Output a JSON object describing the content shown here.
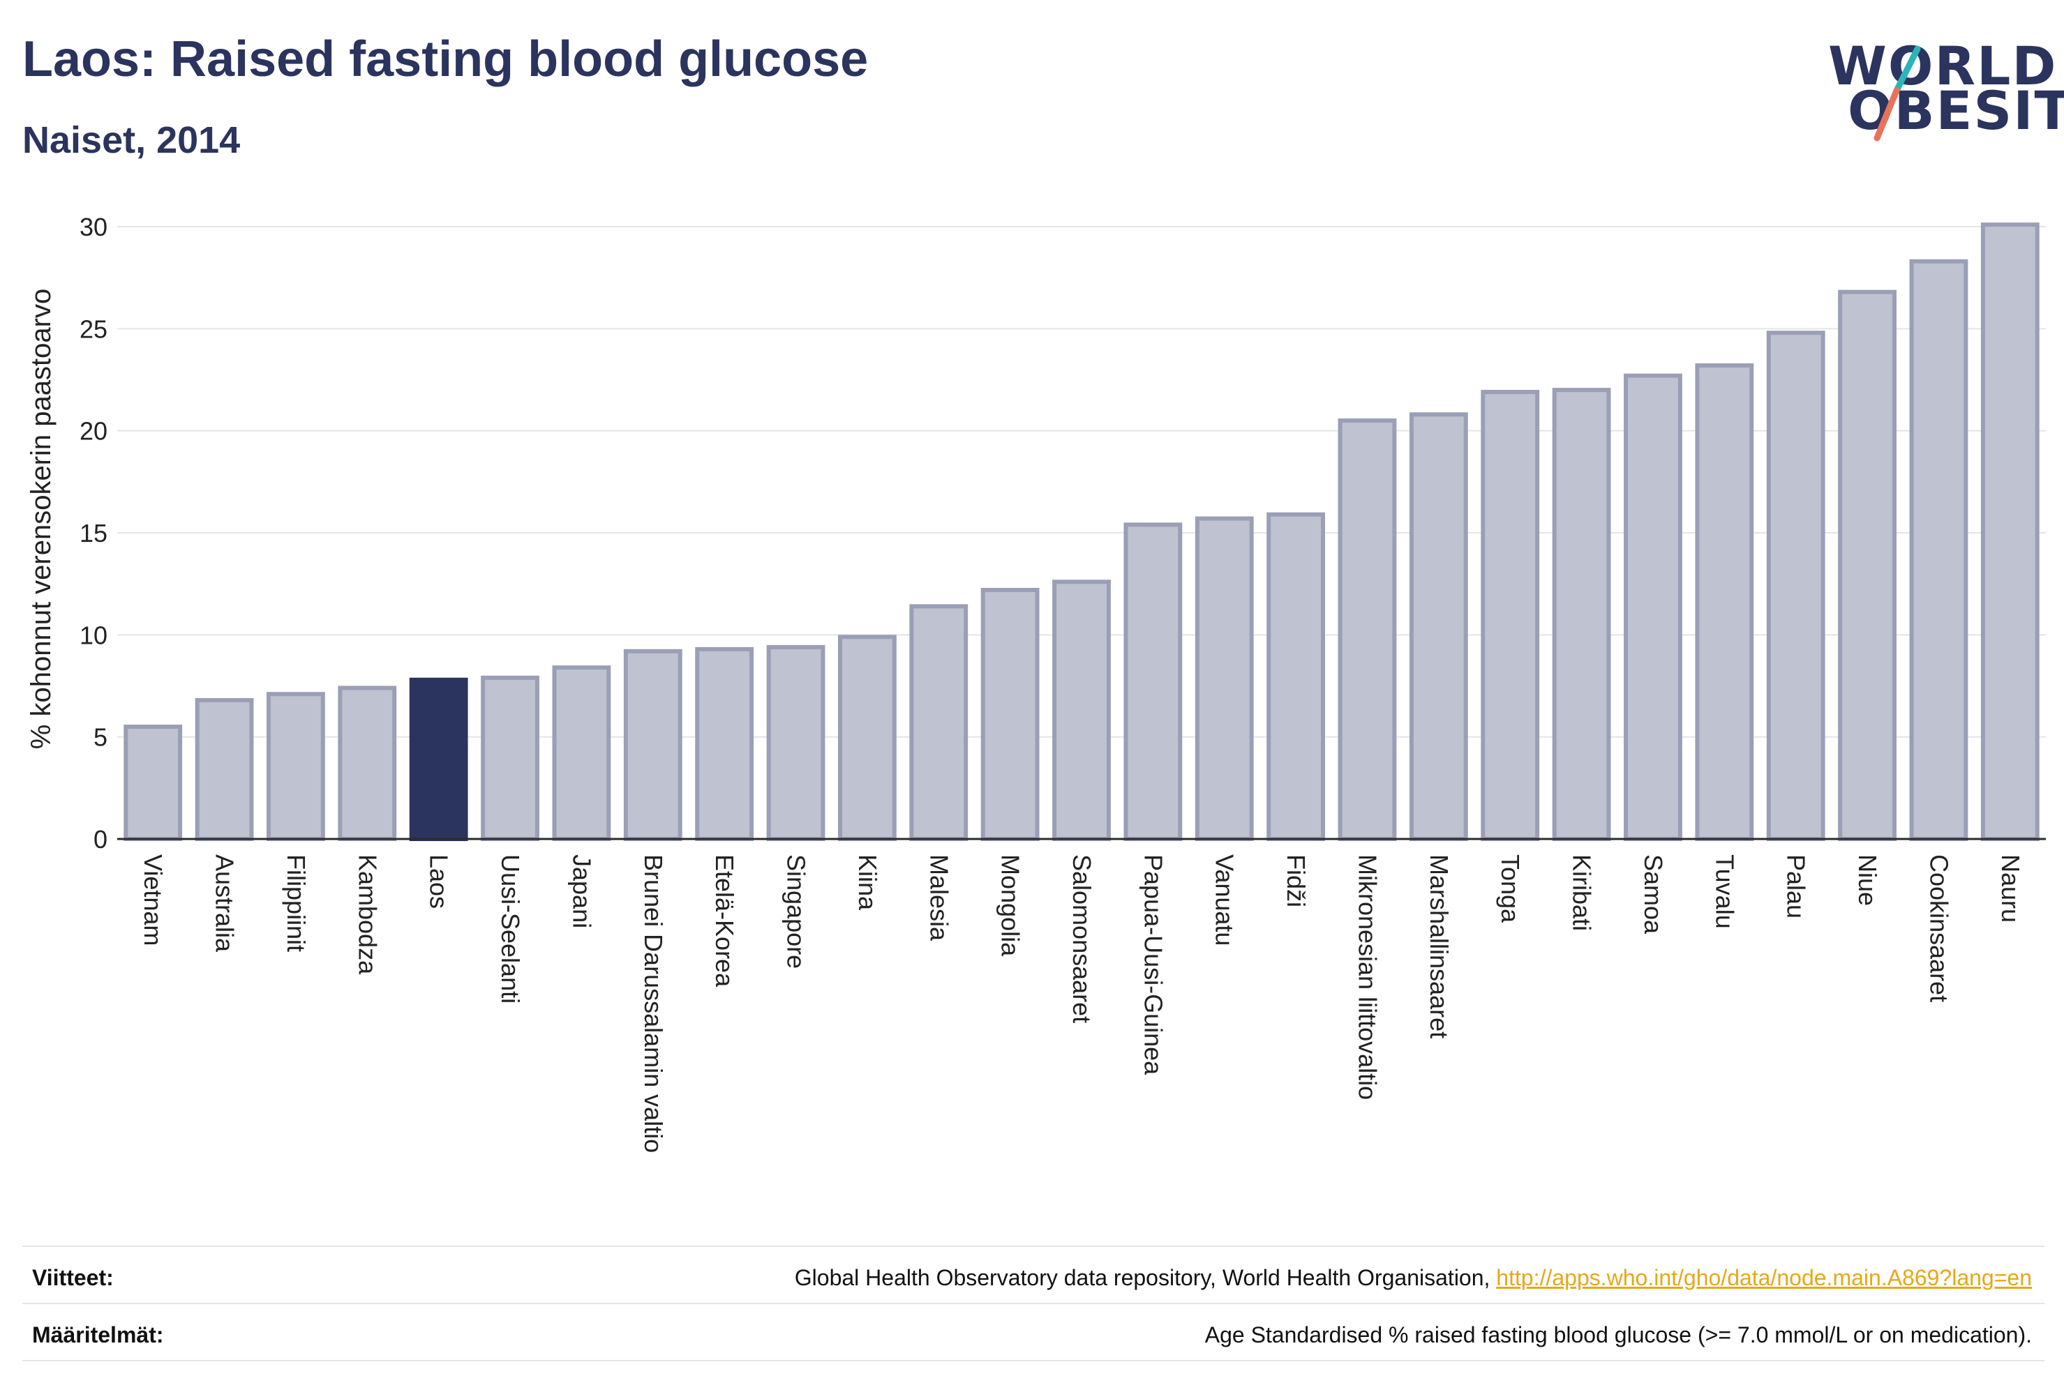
{
  "header": {
    "title": "Laos: Raised fasting blood glucose",
    "subtitle": "Naiset, 2014"
  },
  "logo": {
    "line1": "WORLD",
    "line2": "OBESITY",
    "accent_colors": [
      "#2bb5b8",
      "#e8735a"
    ]
  },
  "chart_data": {
    "type": "bar",
    "ylabel": "% kohonnut verensokerin paastoarvo",
    "xlabel": "",
    "ylim": [
      0,
      30
    ],
    "yticks": [
      0,
      5,
      10,
      15,
      20,
      25,
      30
    ],
    "grid": true,
    "highlight": "Laos",
    "highlight_color": "#2b345e",
    "bar_color": "#bfc2d0",
    "bar_border_color": "#9a9fb6",
    "categories": [
      "Vietnam",
      "Australia",
      "Filippiinit",
      "Kambodza",
      "Laos",
      "Uusi-Seelanti",
      "Japani",
      "Brunei Darussalamin valtio",
      "Etelä-Korea",
      "Singapore",
      "Kiina",
      "Malesia",
      "Mongolia",
      "Salomonsaaret",
      "Papua-Uusi-Guinea",
      "Vanuatu",
      "Fidži",
      "Mikronesian liittovaltio",
      "Marshallinsaaret",
      "Tonga",
      "Kiribati",
      "Samoa",
      "Tuvalu",
      "Palau",
      "Niue",
      "Cookinsaaret",
      "Nauru"
    ],
    "values": [
      5.5,
      6.8,
      7.1,
      7.4,
      7.8,
      7.9,
      8.4,
      9.2,
      9.3,
      9.4,
      9.9,
      11.4,
      12.2,
      12.6,
      15.4,
      15.7,
      15.9,
      20.5,
      20.8,
      21.9,
      22.0,
      22.7,
      23.2,
      24.8,
      26.8,
      28.3,
      30.1
    ]
  },
  "footer": {
    "sources_label": "Viitteet:",
    "sources_text": "Global Health Observatory data repository, World Health Organisation, ",
    "sources_link": "http://apps.who.int/gho/data/node.main.A869?lang=en",
    "definitions_label": "Määritelmät:",
    "definitions_text": "Age Standardised % raised fasting blood glucose (>= 7.0 mmol/L or on medication)."
  }
}
